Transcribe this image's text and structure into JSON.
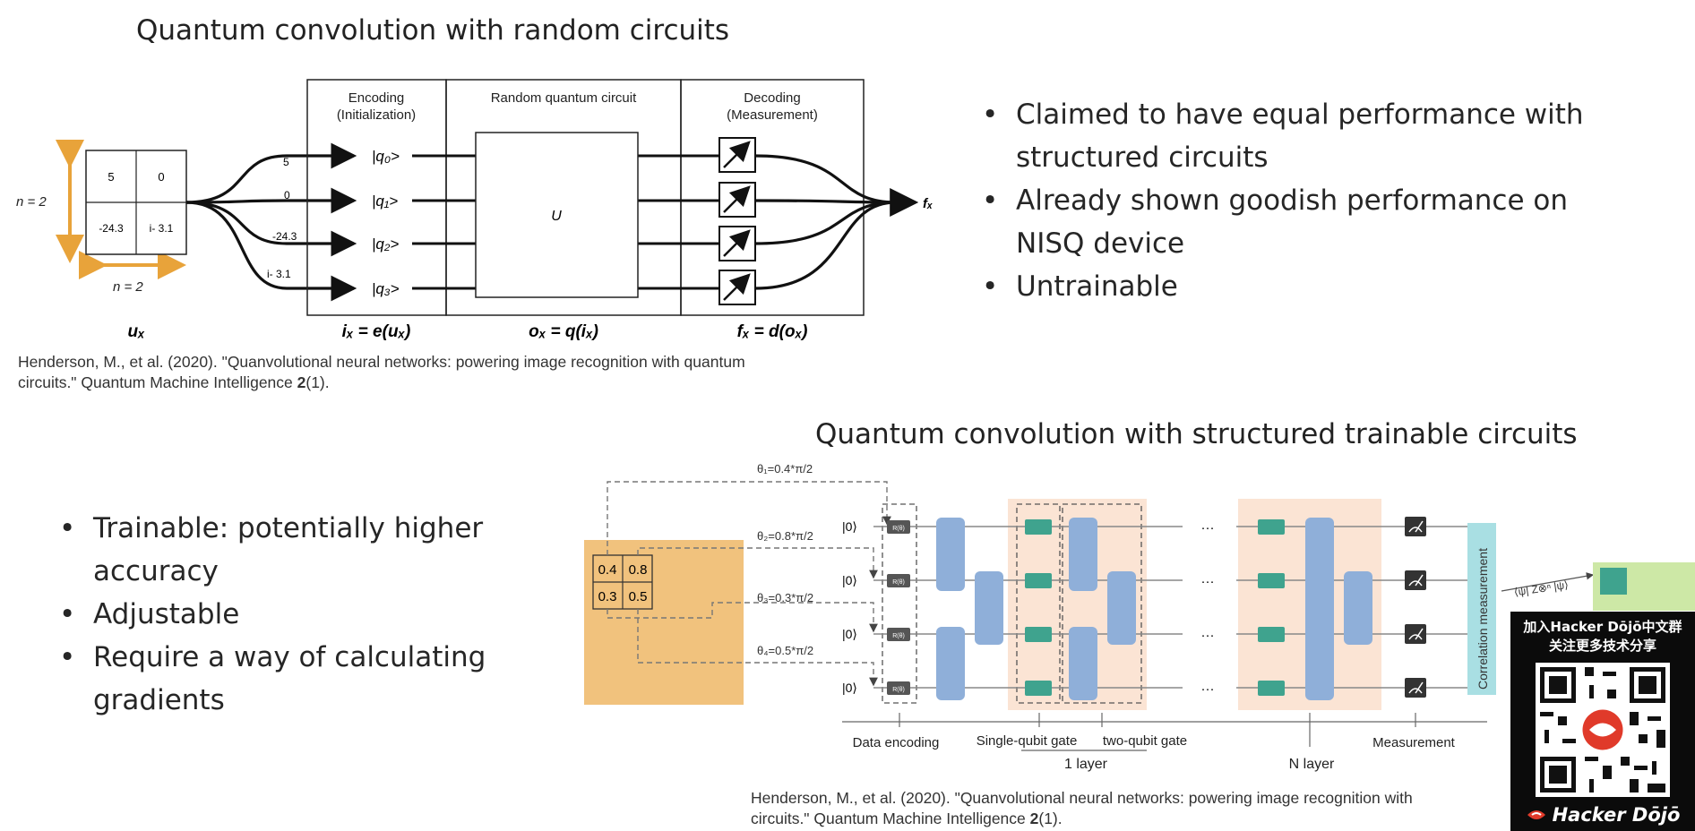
{
  "top": {
    "title": "Quantum convolution with random circuits",
    "bullets": [
      "Claimed to have equal performance with structured circuits",
      "Already shown goodish performance on NISQ device",
      "Untrainable"
    ],
    "figure": {
      "patch": [
        "5",
        "0",
        "-24.3",
        "i- 3.1"
      ],
      "n_left": "n = 2",
      "n_bottom": "n = 2",
      "wire_values": [
        "5",
        "0",
        "-24.3",
        "i- 3.1"
      ],
      "qubits": [
        "|q₀>",
        "|q₁>",
        "|q₂>",
        "|q₃>"
      ],
      "section_encoding": [
        "Encoding",
        "(Initialization)"
      ],
      "section_circuit": "Random quantum circuit",
      "section_decoding": [
        "Decoding",
        "(Measurement)"
      ],
      "unitary": "U",
      "output": "fₓ",
      "formula_u": "uₓ",
      "formula_i": "iₓ = e(uₓ)",
      "formula_o": "oₓ = q(iₓ)",
      "formula_f": "fₓ = d(oₓ)"
    },
    "reference_line1": "Henderson, M., et al. (2020). \"Quanvolutional neural networks: powering image recognition with quantum",
    "reference_line2_pre": "circuits.\" Quantum Machine Intelligence ",
    "reference_volume": "2",
    "reference_line2_post": "(1)."
  },
  "bottom": {
    "title": "Quantum convolution with structured trainable circuits",
    "bullets": [
      "Trainable: potentially higher accuracy",
      "Adjustable",
      "Require a way of calculating gradients"
    ],
    "figure": {
      "patch": [
        "0.4",
        "0.8",
        "0.3",
        "0.5"
      ],
      "thetas": [
        "θ₁=0.4*π/2",
        "θ₂=0.8*π/2",
        "θ₃=0.3*π/2",
        "θ₄=0.5*π/2"
      ],
      "ket": "|0⟩",
      "gate_label": "R(θ)",
      "dots": "···",
      "labels": [
        "Data encoding",
        "Single-qubit gate",
        "two-qubit gate",
        "Measurement"
      ],
      "layer_1": "1 layer",
      "layer_n": "N layer",
      "correlation": "Correlation measurement",
      "expectation": "⟨ψ| Z⊗ⁿ |ψ⟩"
    },
    "reference_line1": "Henderson, M., et al. (2020). \"Quanvolutional neural networks: powering image recognition with",
    "reference_line2_pre": "circuits.\" Quantum Machine Intelligence ",
    "reference_volume": "2",
    "reference_line2_post": "(1)."
  },
  "overlay": {
    "line1": "加入Hacker Dōjō中文群",
    "line2": "关注更多技术分享",
    "brand": "Hacker Dōjō"
  },
  "colors": {
    "arrow_orange": "#e8a33a",
    "patch_orange": "#f1c27d",
    "layer_peach": "#fbe4d4",
    "two_qubit_blue": "#8fafd9",
    "single_qubit_teal": "#3fa38e",
    "correlation_cyan": "#a9dfe3",
    "output_green": "#cde8a6"
  }
}
